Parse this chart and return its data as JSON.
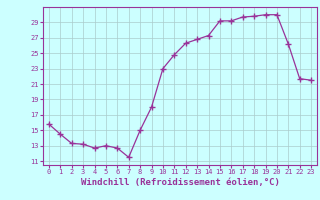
{
  "x": [
    0,
    1,
    2,
    3,
    4,
    5,
    6,
    7,
    8,
    9,
    10,
    11,
    12,
    13,
    14,
    15,
    16,
    17,
    18,
    19,
    20,
    21,
    22,
    23
  ],
  "y": [
    15.8,
    14.5,
    13.3,
    13.2,
    12.7,
    13.0,
    12.7,
    11.5,
    15.0,
    18.0,
    23.0,
    24.8,
    26.3,
    26.8,
    27.3,
    29.2,
    29.2,
    29.7,
    29.8,
    30.0,
    30.0,
    26.2,
    21.7,
    21.5
  ],
  "line_color": "#993399",
  "marker": "+",
  "marker_size": 4.0,
  "line_width": 0.9,
  "bg_color": "#ccffff",
  "grid_color": "#aacccc",
  "xlabel": "Windchill (Refroidissement éolien,°C)",
  "xlabel_fontsize": 6.5,
  "tick_label_color": "#993399",
  "axis_label_color": "#993399",
  "xlim": [
    -0.5,
    23.5
  ],
  "ylim": [
    10.5,
    31.0
  ],
  "yticks": [
    11,
    13,
    15,
    17,
    19,
    21,
    23,
    25,
    27,
    29
  ],
  "xticks": [
    0,
    1,
    2,
    3,
    4,
    5,
    6,
    7,
    8,
    9,
    10,
    11,
    12,
    13,
    14,
    15,
    16,
    17,
    18,
    19,
    20,
    21,
    22,
    23
  ]
}
